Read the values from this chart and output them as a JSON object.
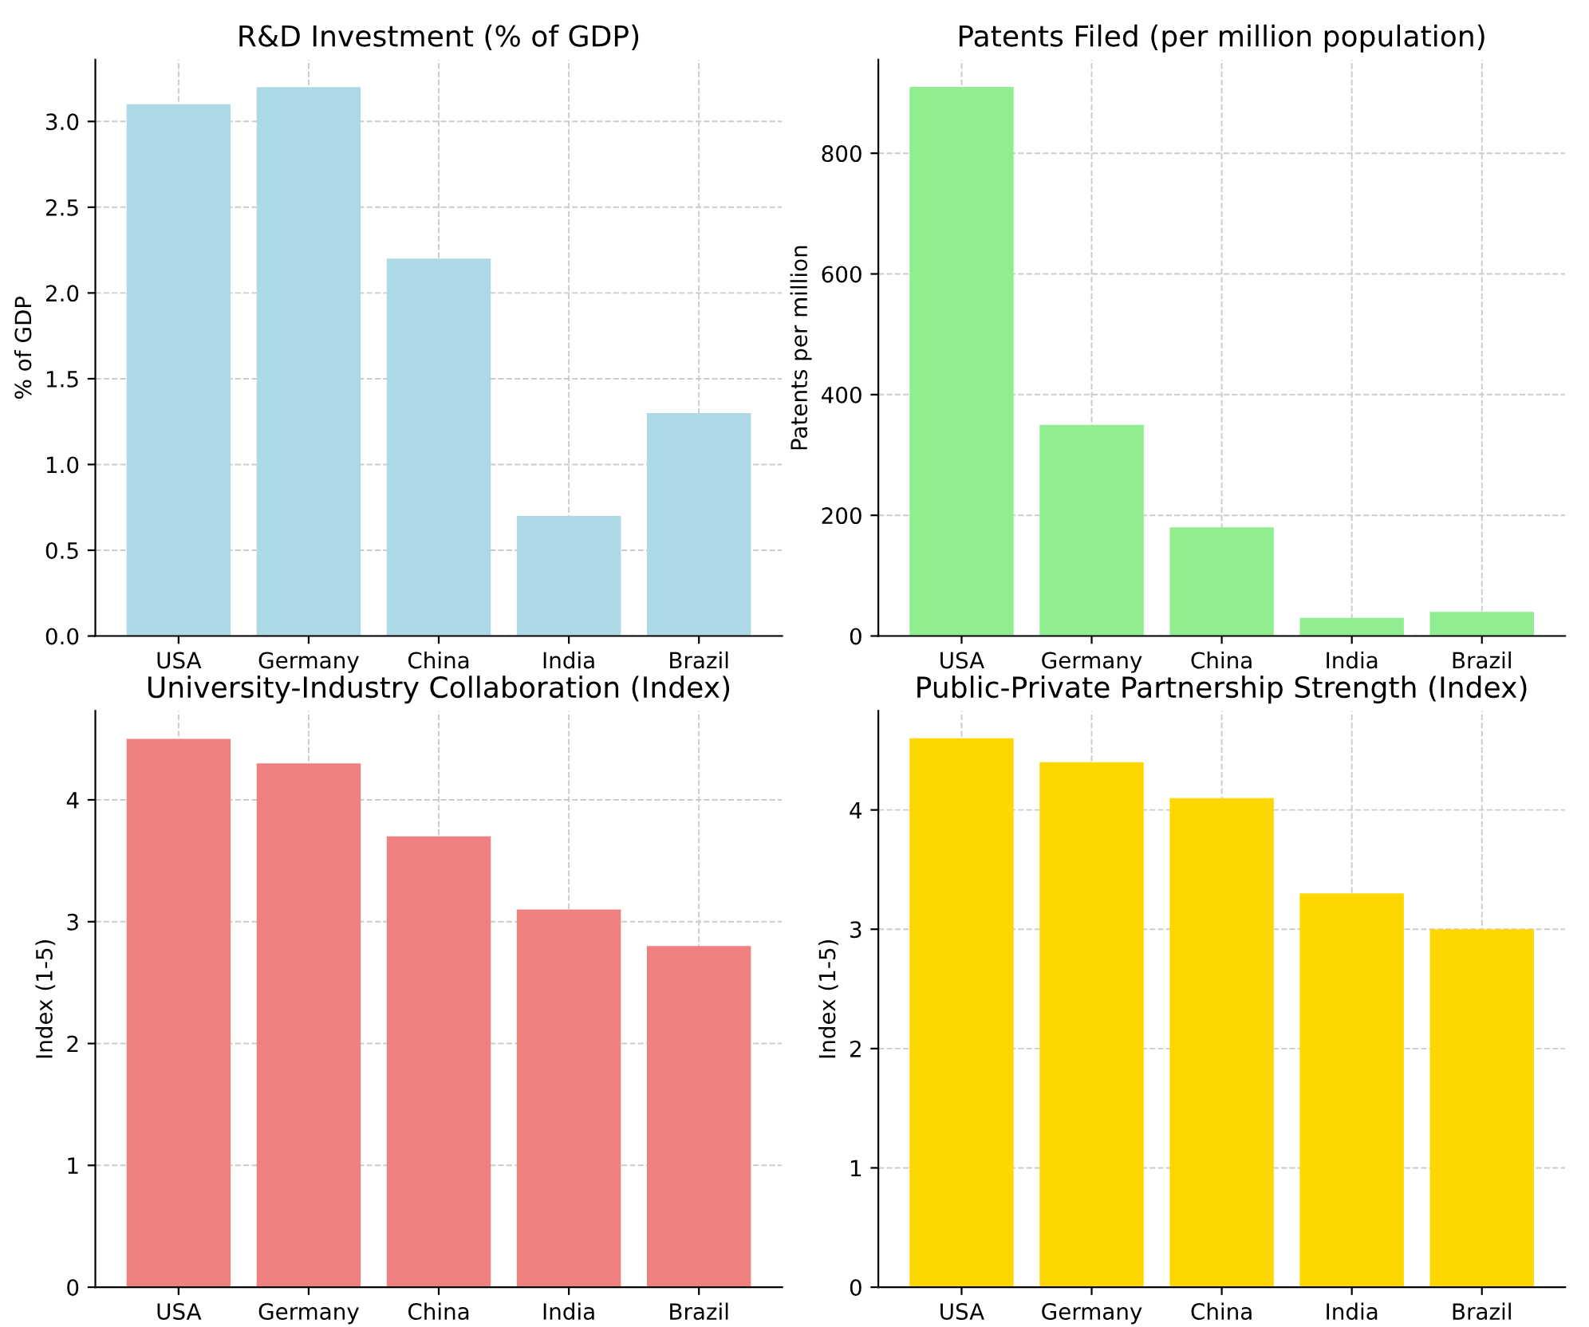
{
  "chart_data": [
    {
      "type": "bar",
      "title": "R&D Investment (% of GDP)",
      "ylabel": "% of GDP",
      "categories": [
        "USA",
        "Germany",
        "China",
        "India",
        "Brazil"
      ],
      "values": [
        3.1,
        3.2,
        2.2,
        0.7,
        1.3
      ],
      "color": "#add8e6",
      "ylim": [
        0,
        3.36
      ],
      "yticks": [
        {
          "value": 0,
          "label": "0.0"
        },
        {
          "value": 0.5,
          "label": "0.5"
        },
        {
          "value": 1,
          "label": "1.0"
        },
        {
          "value": 1.5,
          "label": "1.5"
        },
        {
          "value": 2,
          "label": "2.0"
        },
        {
          "value": 2.5,
          "label": "2.5"
        },
        {
          "value": 3,
          "label": "3.0"
        }
      ],
      "grid": true
    },
    {
      "type": "bar",
      "title": "Patents Filed (per million population)",
      "ylabel": "Patents per million",
      "categories": [
        "USA",
        "Germany",
        "China",
        "India",
        "Brazil"
      ],
      "values": [
        910,
        350,
        180,
        30,
        40
      ],
      "color": "#90ee90",
      "ylim": [
        0,
        955
      ],
      "yticks": [
        0,
        200,
        400,
        600,
        800
      ],
      "grid": true
    },
    {
      "type": "bar",
      "title": "University-Industry Collaboration (Index)",
      "ylabel": "Index (1-5)",
      "categories": [
        "USA",
        "Germany",
        "China",
        "India",
        "Brazil"
      ],
      "values": [
        4.5,
        4.3,
        3.7,
        3.1,
        2.8
      ],
      "color": "#f08080",
      "ylim": [
        0,
        4.73
      ],
      "yticks": [
        0,
        1,
        2,
        3,
        4
      ],
      "grid": true
    },
    {
      "type": "bar",
      "title": "Public-Private Partnership Strength (Index)",
      "ylabel": "Index (1-5)",
      "categories": [
        "USA",
        "Germany",
        "China",
        "India",
        "Brazil"
      ],
      "values": [
        4.6,
        4.4,
        4.1,
        3.3,
        3.0
      ],
      "color": "#ffd700",
      "ylim": [
        0,
        4.83
      ],
      "yticks": [
        0,
        1,
        2,
        3,
        4
      ],
      "grid": true
    }
  ]
}
